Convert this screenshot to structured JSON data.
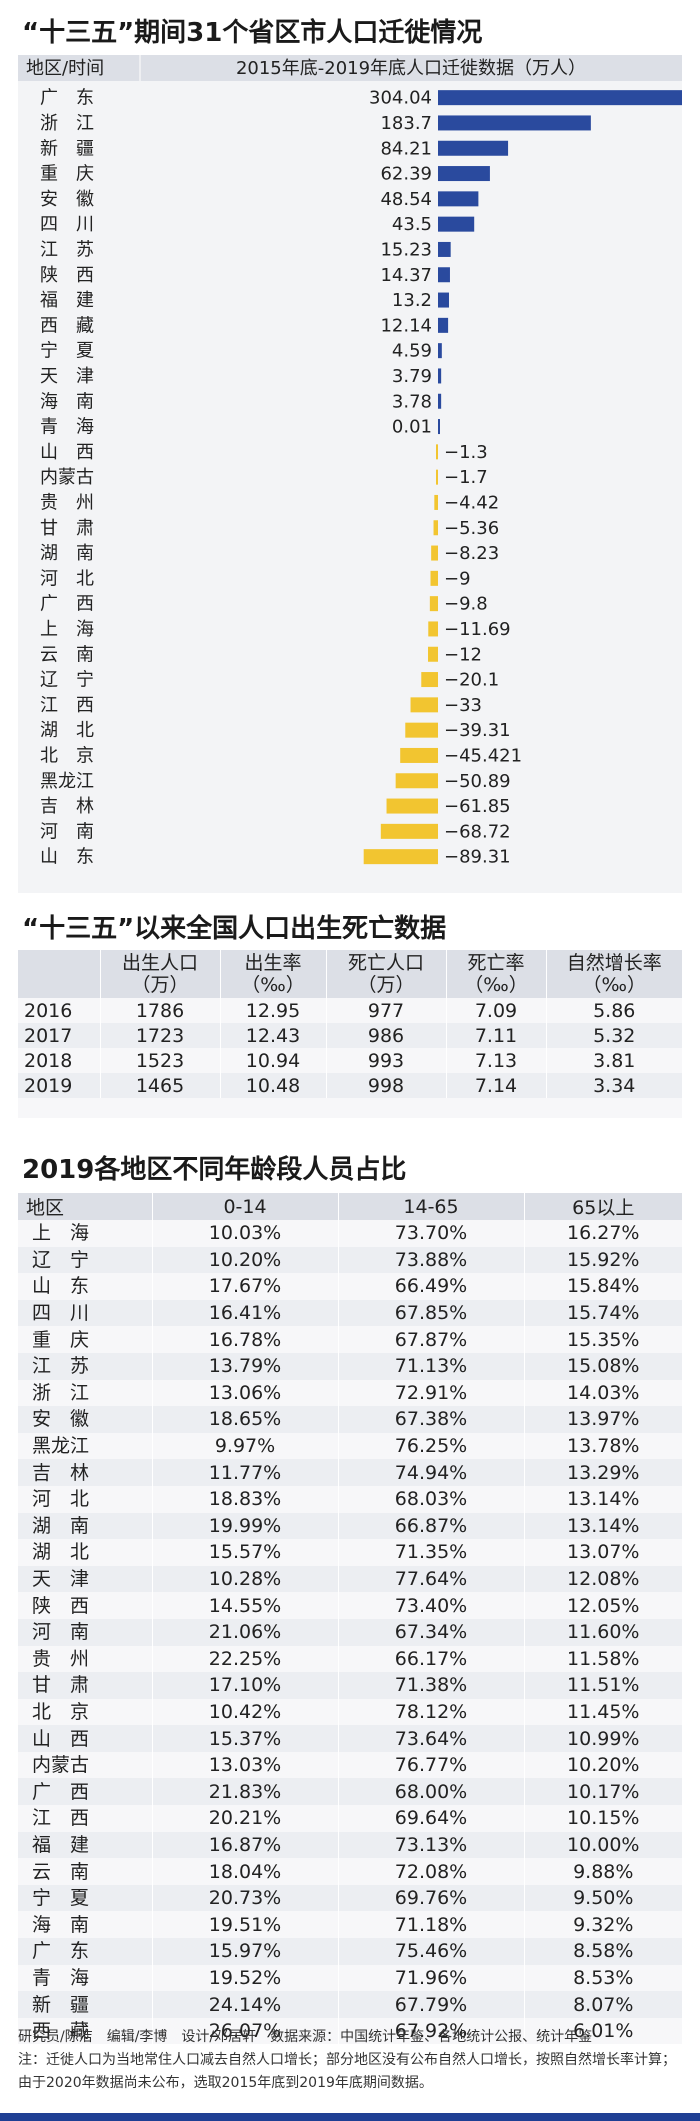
{
  "colors": {
    "positive": "#2a4a9e",
    "negative": "#f2c530",
    "header_bg": "#dcdfe6",
    "bottom_bar": "#1f3f94"
  },
  "chart_data": {
    "type": "bar",
    "title": "“十三五”期间31个省区市人口迁徙情况",
    "region_header": "地区/时间",
    "value_header": "2015年底-2019年底人口迁徙数据（万人）",
    "orientation": "horizontal",
    "grid": false,
    "categories": [
      "广　东",
      "浙　江",
      "新　疆",
      "重　庆",
      "安　徽",
      "四　川",
      "江　苏",
      "陕　西",
      "福　建",
      "西　藏",
      "宁　夏",
      "天　津",
      "海　南",
      "青　海",
      "山　西",
      "内蒙古",
      "贵　州",
      "甘　肃",
      "湖　南",
      "河　北",
      "广　西",
      "上　海",
      "云　南",
      "辽　宁",
      "江　西",
      "湖　北",
      "北　京",
      "黑龙江",
      "吉　林",
      "河　南",
      "山　东"
    ],
    "value_labels": [
      "304.04",
      "183.7",
      "84.21",
      "62.39",
      "48.54",
      "43.5",
      "15.23",
      "14.37",
      "13.2",
      "12.14",
      "4.59",
      "3.79",
      "3.78",
      "0.01",
      "−1.3",
      "−1.7",
      "−4.42",
      "−5.36",
      "−8.23",
      "−9",
      "−9.8",
      "−11.69",
      "−12",
      "−20.1",
      "−33",
      "−39.31",
      "−45.421",
      "−50.89",
      "−61.85",
      "−68.72",
      "−89.31"
    ],
    "values": [
      304.04,
      183.7,
      84.21,
      62.39,
      48.54,
      43.5,
      15.23,
      14.37,
      13.2,
      12.14,
      4.59,
      3.79,
      3.78,
      0.01,
      -1.3,
      -1.7,
      -4.42,
      -5.36,
      -8.23,
      -9,
      -9.8,
      -11.69,
      -12,
      -20.1,
      -33,
      -39.31,
      -45.421,
      -50.89,
      -61.85,
      -68.72,
      -89.31
    ]
  },
  "table1": {
    "title": "“十三五”以来全国人口出生死亡数据",
    "headers": [
      {
        "l1": "",
        "l2": ""
      },
      {
        "l1": "出生人口",
        "l2": "（万）"
      },
      {
        "l1": "出生率",
        "l2": "（‰）"
      },
      {
        "l1": "死亡人口",
        "l2": "（万）"
      },
      {
        "l1": "死亡率",
        "l2": "（‰）"
      },
      {
        "l1": "自然增长率",
        "l2": "（‰）"
      }
    ],
    "rows": [
      [
        "2016",
        "1786",
        "12.95",
        "977",
        "7.09",
        "5.86"
      ],
      [
        "2017",
        "1723",
        "12.43",
        "986",
        "7.11",
        "5.32"
      ],
      [
        "2018",
        "1523",
        "10.94",
        "993",
        "7.13",
        "3.81"
      ],
      [
        "2019",
        "1465",
        "10.48",
        "998",
        "7.14",
        "3.34"
      ]
    ]
  },
  "table2": {
    "title": "2019各地区不同年龄段人员占比",
    "headers": [
      "地区",
      "0-14",
      "14-65",
      "65以上"
    ],
    "rows": [
      [
        "上　海",
        "10.03%",
        "73.70%",
        "16.27%"
      ],
      [
        "辽　宁",
        "10.20%",
        "73.88%",
        "15.92%"
      ],
      [
        "山　东",
        "17.67%",
        "66.49%",
        "15.84%"
      ],
      [
        "四　川",
        "16.41%",
        "67.85%",
        "15.74%"
      ],
      [
        "重　庆",
        "16.78%",
        "67.87%",
        "15.35%"
      ],
      [
        "江　苏",
        "13.79%",
        "71.13%",
        "15.08%"
      ],
      [
        "浙　江",
        "13.06%",
        "72.91%",
        "14.03%"
      ],
      [
        "安　徽",
        "18.65%",
        "67.38%",
        "13.97%"
      ],
      [
        "黑龙江",
        "9.97%",
        "76.25%",
        "13.78%"
      ],
      [
        "吉　林",
        "11.77%",
        "74.94%",
        "13.29%"
      ],
      [
        "河　北",
        "18.83%",
        "68.03%",
        "13.14%"
      ],
      [
        "湖　南",
        "19.99%",
        "66.87%",
        "13.14%"
      ],
      [
        "湖　北",
        "15.57%",
        "71.35%",
        "13.07%"
      ],
      [
        "天　津",
        "10.28%",
        "77.64%",
        "12.08%"
      ],
      [
        "陕　西",
        "14.55%",
        "73.40%",
        "12.05%"
      ],
      [
        "河　南",
        "21.06%",
        "67.34%",
        "11.60%"
      ],
      [
        "贵　州",
        "22.25%",
        "66.17%",
        "11.58%"
      ],
      [
        "甘　肃",
        "17.10%",
        "71.38%",
        "11.51%"
      ],
      [
        "北　京",
        "10.42%",
        "78.12%",
        "11.45%"
      ],
      [
        "山　西",
        "15.37%",
        "73.64%",
        "10.99%"
      ],
      [
        "内蒙古",
        "13.03%",
        "76.77%",
        "10.20%"
      ],
      [
        "广　西",
        "21.83%",
        "68.00%",
        "10.17%"
      ],
      [
        "江　西",
        "20.21%",
        "69.64%",
        "10.15%"
      ],
      [
        "福　建",
        "16.87%",
        "73.13%",
        "10.00%"
      ],
      [
        "云　南",
        "18.04%",
        "72.08%",
        "9.88%"
      ],
      [
        "宁　夏",
        "20.73%",
        "69.76%",
        "9.50%"
      ],
      [
        "海　南",
        "19.51%",
        "71.18%",
        "9.32%"
      ],
      [
        "广　东",
        "15.97%",
        "75.46%",
        "8.58%"
      ],
      [
        "青　海",
        "19.52%",
        "71.96%",
        "8.53%"
      ],
      [
        "新　疆",
        "24.14%",
        "67.79%",
        "8.07%"
      ],
      [
        "西　藏",
        "26.07%",
        "67.92%",
        "6.01%"
      ]
    ]
  },
  "footer": {
    "credits": "研究员/陈洁　编辑/李博　设计/邓居轩　数据来源：中国统计年鉴、各地统计公报、统计年鉴",
    "note": "注：迁徙人口为当地常住人口减去自然人口增长；部分地区没有公布自然人口增长，按照自然增长率计算；由于2020年数据尚未公布，选取2015年底到2019年底期间数据。"
  }
}
